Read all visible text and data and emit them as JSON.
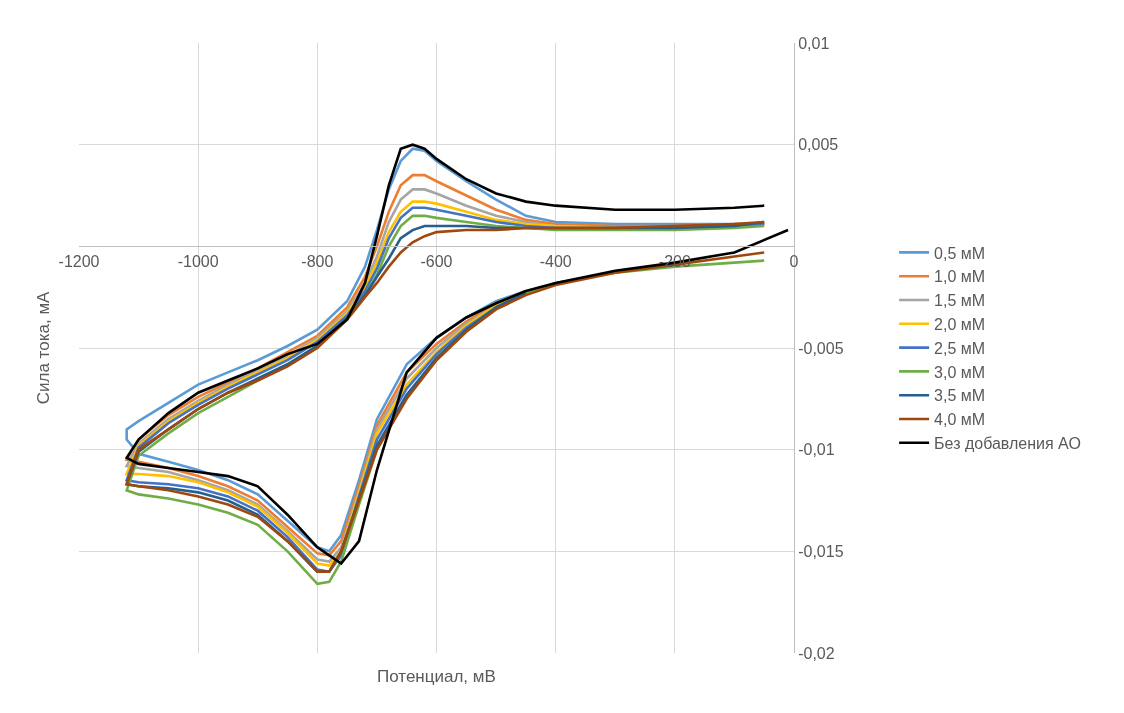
{
  "chart_data": {
    "type": "line",
    "xlabel": "Потенциал, мВ",
    "ylabel": "Сила тока, мА",
    "xlim": [
      -1200,
      0
    ],
    "xticks": [
      -1200,
      -1000,
      -800,
      -600,
      -400,
      -200,
      0
    ],
    "ylim": [
      -0.02,
      0.01
    ],
    "yticks": [
      {
        "value": -0.02,
        "label": "-0,02"
      },
      {
        "value": -0.015,
        "label": "-0,015"
      },
      {
        "value": -0.01,
        "label": "-0,01"
      },
      {
        "value": -0.005,
        "label": "-0,005"
      },
      {
        "value": 0,
        "label": null
      },
      {
        "value": 0.005,
        "label": "0,005"
      },
      {
        "value": 0.01,
        "label": "0,01"
      }
    ],
    "grid": true,
    "legend": "right",
    "marker": "none",
    "line_style": "solid",
    "x": [
      -50,
      -100,
      -200,
      -300,
      -400,
      -450,
      -500,
      -550,
      -600,
      -650,
      -700,
      -730,
      -760,
      -780,
      -800,
      -850,
      -900,
      -950,
      -1000,
      -1050,
      -1100,
      -1120,
      -1120,
      -1100,
      -1050,
      -1000,
      -950,
      -900,
      -850,
      -800,
      -750,
      -720,
      -700,
      -680,
      -660,
      -640,
      -620,
      -600,
      -550,
      -500,
      -450,
      -400,
      -300,
      -200,
      -100,
      -50
    ],
    "series": [
      {
        "name": "0,5 мМ",
        "color": "#5b9bd5",
        "values": [
          null,
          null,
          null,
          null,
          null,
          -0.0022,
          -0.0027,
          -0.0035,
          -0.0045,
          -0.0058,
          -0.0085,
          -0.0115,
          -0.0142,
          -0.015,
          -0.0148,
          -0.0135,
          -0.0122,
          -0.0115,
          -0.011,
          -0.0106,
          -0.0102,
          -0.0095,
          -0.009,
          -0.0086,
          -0.0077,
          -0.0068,
          -0.0062,
          -0.0056,
          -0.0049,
          -0.0041,
          -0.0027,
          -0.001,
          0.0008,
          0.0028,
          0.0042,
          0.0048,
          0.0047,
          0.0042,
          0.0032,
          0.0023,
          0.0015,
          0.0012,
          0.0011,
          0.0011,
          0.0011,
          0.0011
        ]
      },
      {
        "name": "1,0 мМ",
        "color": "#ed7d31",
        "values": [
          null,
          null,
          null,
          null,
          null,
          -0.0022,
          -0.0028,
          -0.0037,
          -0.0048,
          -0.0062,
          -0.0088,
          -0.0118,
          -0.0145,
          -0.0152,
          -0.0151,
          -0.0138,
          -0.0125,
          -0.0118,
          -0.0113,
          -0.0109,
          -0.0106,
          -0.0105,
          -0.0105,
          -0.0095,
          -0.0083,
          -0.0074,
          -0.0067,
          -0.006,
          -0.0052,
          -0.0044,
          -0.003,
          -0.0015,
          0.0,
          0.0017,
          0.003,
          0.0035,
          0.0035,
          0.0032,
          0.0025,
          0.0018,
          0.0013,
          0.0011,
          0.001,
          0.001,
          0.0011,
          0.0011
        ]
      },
      {
        "name": "1,5 мМ",
        "color": "#a5a5a5",
        "values": [
          null,
          null,
          null,
          null,
          null,
          -0.0023,
          -0.0029,
          -0.0038,
          -0.005,
          -0.0065,
          -0.009,
          -0.012,
          -0.0148,
          -0.0155,
          -0.0154,
          -0.014,
          -0.0127,
          -0.012,
          -0.0115,
          -0.0111,
          -0.0109,
          -0.0108,
          -0.0108,
          -0.0097,
          -0.0085,
          -0.0076,
          -0.0068,
          -0.0061,
          -0.0054,
          -0.0045,
          -0.0032,
          -0.0018,
          -0.0005,
          0.0012,
          0.0023,
          0.0028,
          0.0028,
          0.0026,
          0.002,
          0.0015,
          0.0012,
          0.001,
          0.0009,
          0.0009,
          0.001,
          0.0011
        ]
      },
      {
        "name": "2,0 мМ",
        "color": "#ffc000",
        "values": [
          null,
          null,
          null,
          null,
          null,
          -0.0023,
          -0.0029,
          -0.0039,
          -0.0052,
          -0.0068,
          -0.0092,
          -0.0121,
          -0.015,
          -0.0157,
          -0.0156,
          -0.0141,
          -0.0128,
          -0.0121,
          -0.0116,
          -0.0113,
          -0.0112,
          -0.0112,
          -0.0112,
          -0.0098,
          -0.0086,
          -0.0077,
          -0.0069,
          -0.0062,
          -0.0055,
          -0.0046,
          -0.0033,
          -0.002,
          -0.0008,
          0.0007,
          0.0017,
          0.0022,
          0.0022,
          0.0021,
          0.0017,
          0.0013,
          0.0011,
          0.001,
          0.0009,
          null,
          null,
          null
        ]
      },
      {
        "name": "2,5 мМ",
        "color": "#4472c4",
        "values": [
          null,
          null,
          null,
          null,
          null,
          -0.0023,
          -0.003,
          -0.004,
          -0.0053,
          -0.007,
          -0.0095,
          -0.0123,
          -0.0152,
          -0.016,
          -0.0159,
          -0.0143,
          -0.013,
          -0.0123,
          -0.0119,
          -0.0117,
          -0.0116,
          -0.0115,
          -0.0115,
          -0.0099,
          -0.0087,
          -0.0078,
          -0.007,
          -0.0063,
          -0.0056,
          -0.0047,
          -0.0034,
          -0.0022,
          -0.0011,
          0.0004,
          0.0014,
          0.0019,
          0.0019,
          0.0018,
          0.0015,
          0.0012,
          0.001,
          0.0009,
          0.0009,
          0.0009,
          0.001,
          0.0011
        ]
      },
      {
        "name": "3,0 мМ",
        "color": "#70ad47",
        "values": [
          -0.0007,
          -0.0008,
          -0.001,
          -0.0013,
          -0.0018,
          -0.0023,
          -0.003,
          -0.0041,
          -0.0055,
          -0.0074,
          -0.01,
          -0.0127,
          -0.0155,
          -0.0165,
          -0.0166,
          -0.015,
          -0.0137,
          -0.0131,
          -0.0127,
          -0.0124,
          -0.0122,
          -0.012,
          -0.012,
          -0.0103,
          -0.0092,
          -0.0082,
          -0.0074,
          -0.0066,
          -0.0058,
          -0.0049,
          -0.0035,
          -0.0024,
          -0.0014,
          0.0,
          0.001,
          0.0015,
          0.0015,
          0.0014,
          0.0012,
          0.001,
          0.0009,
          0.0008,
          0.0008,
          0.0008,
          0.0009,
          0.001
        ]
      },
      {
        "name": "3,5 мМ",
        "color": "#255e91",
        "values": [
          null,
          null,
          null,
          null,
          null,
          -0.0023,
          -0.003,
          -0.0041,
          -0.0055,
          -0.0073,
          -0.0098,
          -0.0124,
          -0.015,
          -0.016,
          -0.016,
          -0.0145,
          -0.0132,
          -0.0125,
          -0.0121,
          -0.0119,
          -0.0118,
          -0.0117,
          -0.0117,
          -0.0101,
          -0.009,
          -0.008,
          -0.0072,
          -0.0065,
          -0.0058,
          -0.0049,
          -0.0035,
          -0.0024,
          -0.0015,
          -0.0006,
          0.0004,
          0.0008,
          0.001,
          0.001,
          0.001,
          0.0009,
          0.0009,
          0.0009,
          0.0009,
          0.0009,
          0.001,
          0.0012
        ]
      },
      {
        "name": "4,0 мМ",
        "color": "#9e480e",
        "values": [
          -0.0003,
          -0.0005,
          -0.0009,
          -0.0013,
          -0.0019,
          -0.0024,
          -0.0031,
          -0.0042,
          -0.0056,
          -0.0075,
          -0.01,
          -0.0125,
          -0.015,
          -0.016,
          -0.016,
          -0.0145,
          -0.0133,
          -0.0127,
          -0.0123,
          -0.012,
          -0.0118,
          -0.0117,
          -0.0117,
          -0.01,
          -0.009,
          -0.008,
          -0.0072,
          -0.0066,
          -0.0059,
          -0.005,
          -0.0036,
          -0.0025,
          -0.0018,
          -0.001,
          -0.0003,
          0.0002,
          0.0005,
          0.0007,
          0.0008,
          0.0008,
          0.0009,
          0.0009,
          0.0009,
          0.001,
          0.0011,
          0.0012
        ]
      },
      {
        "name": "Без добавления АО",
        "color": "#000000",
        "x": [
          -10,
          -100,
          -200,
          -300,
          -400,
          -450,
          -500,
          -550,
          -600,
          -650,
          -700,
          -730,
          -760,
          -780,
          -800,
          -850,
          -900,
          -950,
          -1000,
          -1050,
          -1100,
          -1120,
          -1120,
          -1100,
          -1050,
          -1000,
          -950,
          -900,
          -850,
          -800,
          -750,
          -720,
          -700,
          -680,
          -660,
          -640,
          -620,
          -600,
          -550,
          -500,
          -450,
          -400,
          -300,
          -200,
          -100,
          -50
        ],
        "values": [
          0.0008,
          -0.0003,
          -0.0008,
          -0.0012,
          -0.0018,
          -0.0022,
          -0.0028,
          -0.0035,
          -0.0045,
          -0.0062,
          -0.011,
          -0.0145,
          -0.0156,
          -0.0152,
          -0.0148,
          -0.0132,
          -0.0118,
          -0.0113,
          -0.0111,
          -0.0109,
          -0.0107,
          -0.0104,
          -0.0104,
          -0.0095,
          -0.0082,
          -0.0072,
          -0.0066,
          -0.006,
          -0.0053,
          -0.0048,
          -0.0036,
          -0.0018,
          0.0005,
          0.003,
          0.0048,
          0.005,
          0.0048,
          0.0043,
          0.0033,
          0.0026,
          0.0022,
          0.002,
          0.0018,
          0.0018,
          0.0019,
          0.002
        ]
      }
    ]
  }
}
